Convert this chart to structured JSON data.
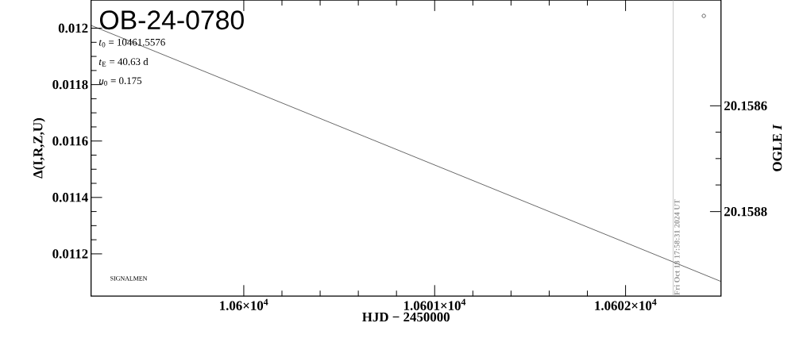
{
  "chart_data": {
    "type": "line",
    "title": "OB-24-0780",
    "xlabel": "HJD − 2450000",
    "ylabel": "Δ(I,R,Z,U)",
    "y2label": "OGLE *I*",
    "xlim": [
      10599.2,
      10602.5
    ],
    "xticks": [
      {
        "value": 10600,
        "label": "1.06×10$^{4}$"
      },
      {
        "value": 10601,
        "label": "1.0601×10$^{4}$"
      },
      {
        "value": 10602,
        "label": "1.0602×10$^{4}$"
      }
    ],
    "ylim": [
      0.01105,
      0.0121
    ],
    "yticks": [
      0.0112,
      0.0114,
      0.0116,
      0.0118,
      0.012
    ],
    "y2lim": [
      20.15896,
      20.1584
    ],
    "y2ticks": [
      20.1586,
      20.1588
    ],
    "series": [
      {
        "color": "#000000",
        "marker": "none",
        "line_style": "solid",
        "x": [
          10599.2,
          10600,
          10601,
          10602,
          10602.5
        ],
        "values": [
          0.01201,
          0.01179,
          0.011515,
          0.01124,
          0.011102
        ]
      },
      {
        "type": "scatter",
        "color": "#000000",
        "marker": "circle",
        "axis": "y2",
        "x": [
          10602.41
        ],
        "values": [
          20.15843
        ]
      }
    ],
    "ref_lines": [
      {
        "axis": "x",
        "value": 10602.249,
        "color": "#999999"
      }
    ],
    "annotations": [
      "*t*$_{0}$ = 10461.5576",
      "*t*$_{E}$ = 40.63 d",
      "*u*$_{0}$ = 0.175",
      "SIGNALMEN",
      {
        "text": "Fri Oct 18 17:58:31 2024 UT",
        "x": 10602.249,
        "y": 0.01105
      }
    ]
  }
}
